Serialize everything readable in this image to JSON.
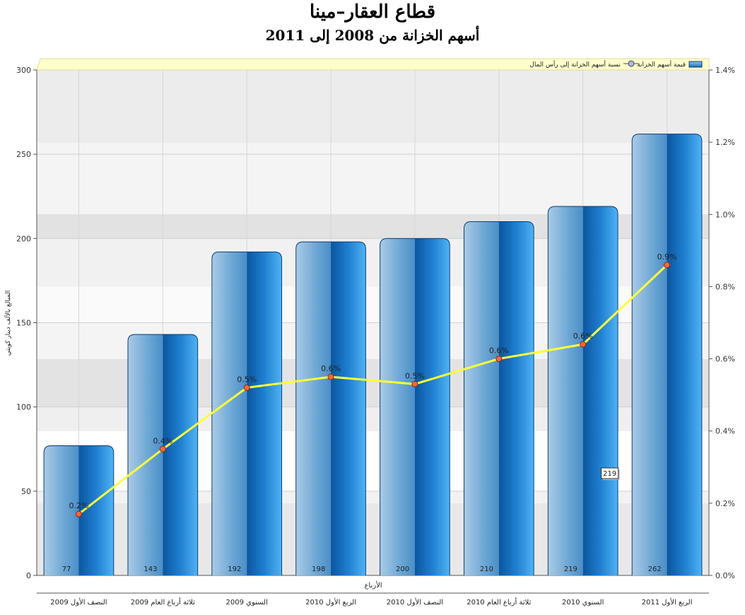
{
  "chart_data": {
    "type": "bar",
    "title": "قطاع العقار–مينا",
    "subtitle": "أسهم الخزانة من 2008 إلى 2011",
    "xlabel": "الأرباع",
    "ylabel": "المبالغ بالألف دينار كويتي",
    "categories": [
      "النصف الأول 2009",
      "ثلاثة أرباع العام 2009",
      "السنوي 2009",
      "الربع الأول 2010",
      "النصف الأول 2010",
      "ثلاثة أرباع العام 2010",
      "السنوي 2010",
      "الربع الأول 2011"
    ],
    "ylim": [
      0,
      300
    ],
    "yticks": [
      0,
      50,
      100,
      150,
      200,
      250,
      300
    ],
    "y2lim": [
      0,
      1.4
    ],
    "y2ticks": [
      "0.0%",
      "0.2%",
      "0.4%",
      "0.6%",
      "0.8%",
      "1.0%",
      "1.2%",
      "1.4%"
    ],
    "legend_position": "top-right",
    "grid": true,
    "series": [
      {
        "name": "قيمة أسهم الخزانة",
        "type": "bar",
        "axis": "left",
        "values": [
          77,
          143,
          192,
          198,
          200,
          210,
          219,
          262
        ],
        "labels": [
          "77",
          "143",
          "192",
          "198",
          "200",
          "210",
          "219",
          "262"
        ],
        "color": "#1a73c9"
      },
      {
        "name": "نسبة أسهم الخزانة إلى رأس المال",
        "type": "line",
        "axis": "right",
        "values": [
          0.17,
          0.35,
          0.52,
          0.55,
          0.53,
          0.6,
          0.64,
          0.86
        ],
        "labels": [
          "0.2%",
          "0.4%",
          "0.5%",
          "0.6%",
          "0.5%",
          "0.6%",
          "0.6%",
          "0.9%"
        ],
        "color": "#ffff33",
        "marker_color": "#ff6633"
      }
    ],
    "tooltip": {
      "text": "219",
      "category_index": 6
    }
  }
}
